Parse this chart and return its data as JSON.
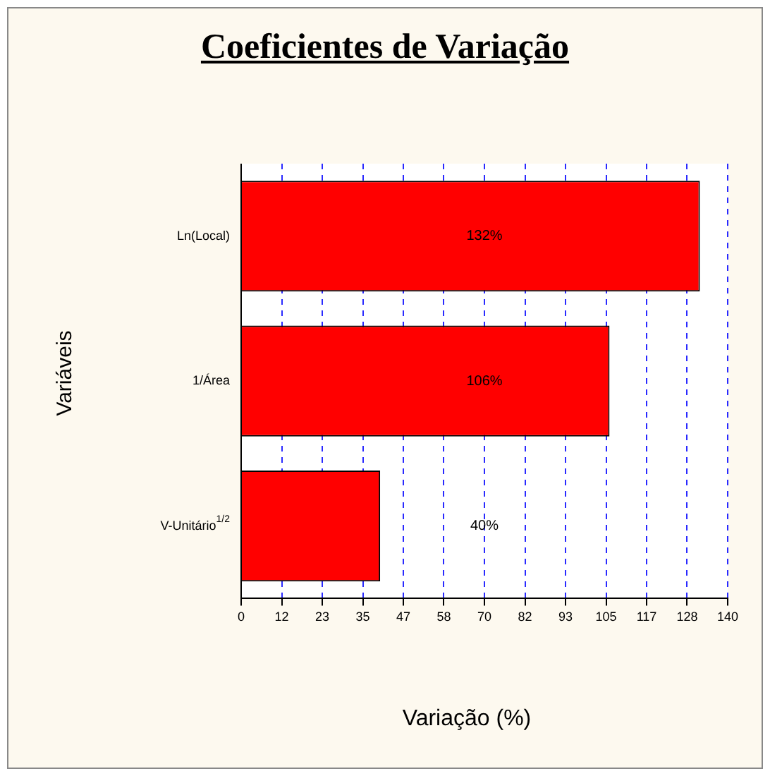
{
  "chart_data": {
    "type": "bar",
    "orientation": "horizontal",
    "title": "Coeficientes de Variação",
    "xlabel": "Variação (%)",
    "ylabel": "Variáveis",
    "categories": [
      "Ln(Local)",
      "1/Área",
      "V-Unitário$^{1/2}$"
    ],
    "values": [
      132,
      106,
      40
    ],
    "color": "#ff0000",
    "value_labels": [
      "132%",
      "106%",
      "40%"
    ],
    "xlim": [
      0,
      140
    ],
    "xticks": [
      0,
      {
        "value": 11.67,
        "label": "12"
      },
      {
        "value": 23.33,
        "label": "23"
      },
      35,
      {
        "value": 46.67,
        "label": "47"
      },
      {
        "value": 58.33,
        "label": "58"
      },
      70,
      {
        "value": 81.67,
        "label": "82"
      },
      {
        "value": 93.33,
        "label": "93"
      },
      105,
      {
        "value": 116.67,
        "label": "117"
      },
      {
        "value": 128.33,
        "label": "128"
      },
      140
    ],
    "grid": "x",
    "legend": false
  }
}
